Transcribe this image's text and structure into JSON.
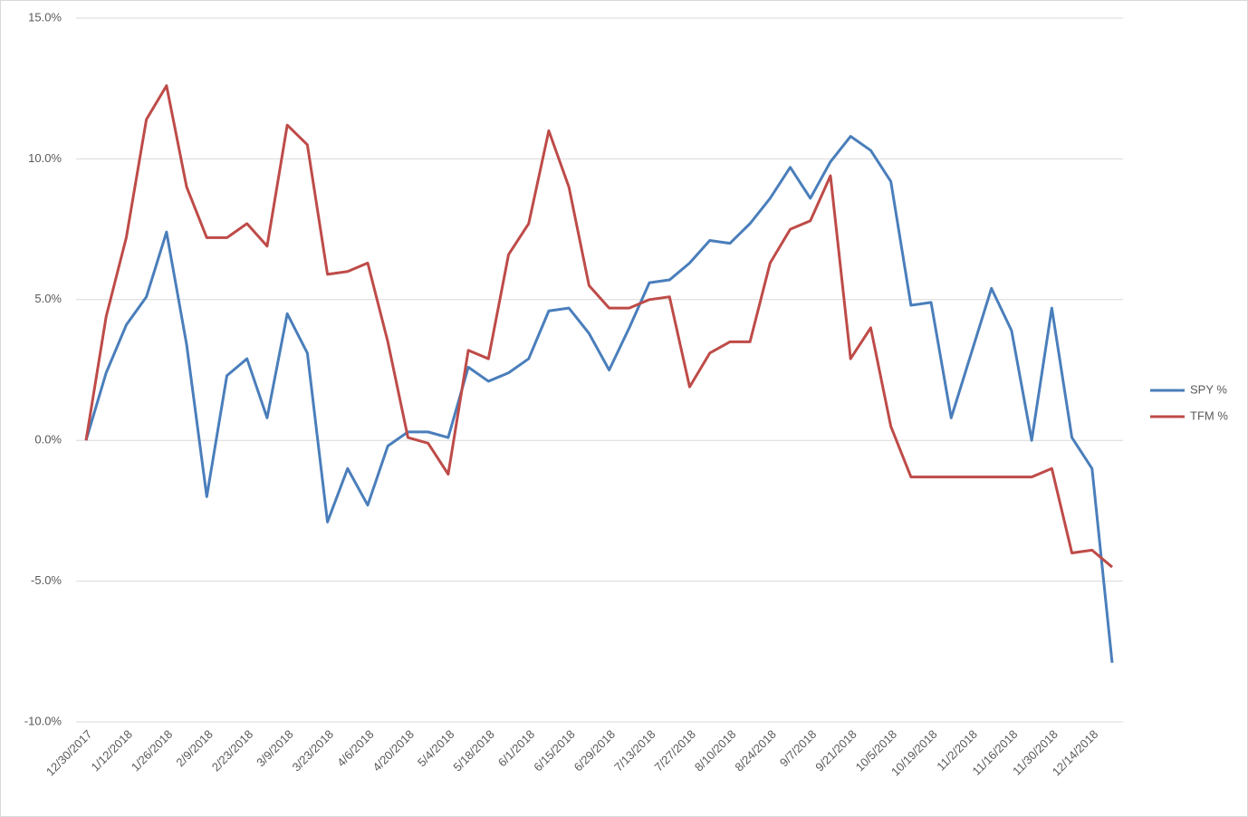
{
  "chart_data": {
    "type": "line",
    "categories": [
      "12/30/2017",
      null,
      "1/12/2018",
      null,
      "1/26/2018",
      null,
      "2/9/2018",
      null,
      "2/23/2018",
      null,
      "3/9/2018",
      null,
      "3/23/2018",
      null,
      "4/6/2018",
      null,
      "4/20/2018",
      null,
      "5/4/2018",
      null,
      "5/18/2018",
      null,
      "6/1/2018",
      null,
      "6/15/2018",
      null,
      "6/29/2018",
      null,
      "7/13/2018",
      null,
      "7/27/2018",
      null,
      "8/10/2018",
      null,
      "8/24/2018",
      null,
      "9/7/2018",
      null,
      "9/21/2018",
      null,
      "10/5/2018",
      null,
      "10/19/2018",
      null,
      "11/2/2018",
      null,
      "11/16/2018",
      null,
      "11/30/2018",
      null,
      "12/14/2018",
      null
    ],
    "series": [
      {
        "name": "SPY %",
        "color": "#4a7ebb",
        "values": [
          0,
          2.4,
          4.1,
          5.1,
          7.4,
          3.4,
          -2.0,
          2.3,
          2.9,
          0.8,
          4.5,
          3.1,
          -2.9,
          -1.0,
          -2.3,
          -0.2,
          0.3,
          0.3,
          0.1,
          2.6,
          2.1,
          2.4,
          2.9,
          4.6,
          4.7,
          3.8,
          2.5,
          4.0,
          5.6,
          5.7,
          6.3,
          7.1,
          7.0,
          7.7,
          8.6,
          9.7,
          8.6,
          9.9,
          10.8,
          10.3,
          9.2,
          4.8,
          4.9,
          0.8,
          3.1,
          5.4,
          3.9,
          0,
          4.7,
          0.1,
          -1.0,
          -7.9
        ]
      },
      {
        "name": "TFM %",
        "color": "#be4b48",
        "values": [
          0,
          4.4,
          7.2,
          11.4,
          12.6,
          9.0,
          7.2,
          7.2,
          7.7,
          6.9,
          11.2,
          10.5,
          5.9,
          6.0,
          6.3,
          3.5,
          0.1,
          -0.1,
          -1.2,
          3.2,
          2.9,
          6.6,
          7.7,
          11.0,
          9.0,
          5.5,
          4.7,
          4.7,
          5.0,
          5.1,
          1.9,
          3.1,
          3.5,
          3.5,
          6.3,
          7.5,
          7.8,
          9.4,
          2.9,
          4.0,
          0.5,
          -1.3,
          -1.3,
          -1.3,
          -1.3,
          -1.3,
          -1.3,
          -1.3,
          -1.0,
          -4.0,
          -3.9,
          -4.5
        ]
      }
    ],
    "ylim": [
      -10,
      15
    ],
    "yticks": [
      {
        "value": -10,
        "label": "-10.0%"
      },
      {
        "value": -5,
        "label": "-5.0%"
      },
      {
        "value": 0,
        "label": "0.0%"
      },
      {
        "value": 5,
        "label": "5.0%"
      },
      {
        "value": 10,
        "label": "10.0%"
      },
      {
        "value": 15,
        "label": "15.0%"
      }
    ],
    "grid": true,
    "legend": "right"
  }
}
